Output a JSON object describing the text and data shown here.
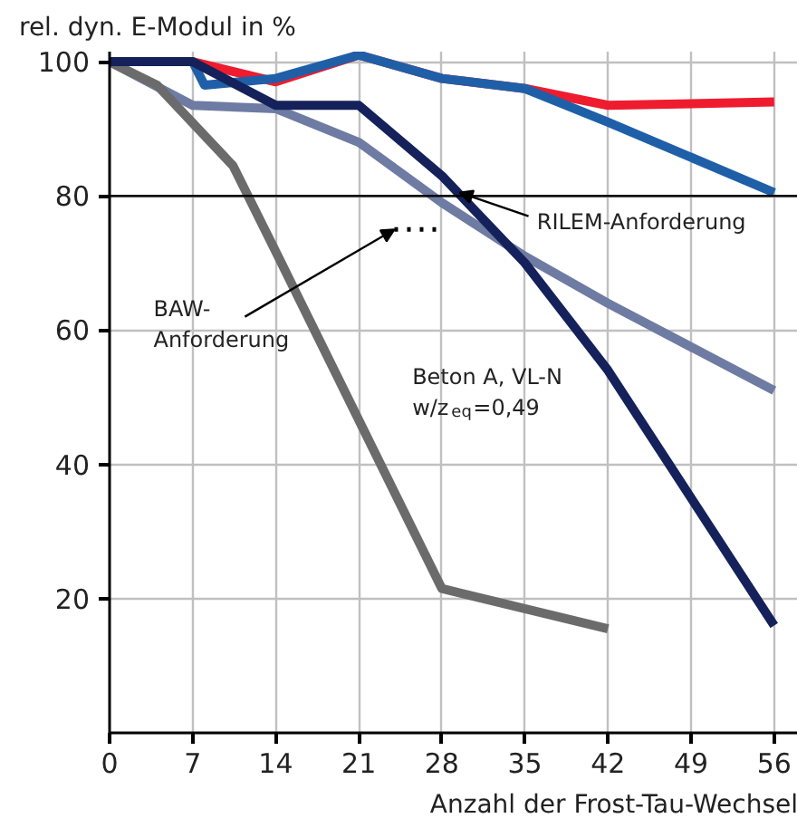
{
  "chart_data": {
    "type": "line",
    "ylabel": "rel. dyn. E-Modul in %",
    "xlabel": "Anzahl der Frost-Tau-Wechsel",
    "xlim": [
      0,
      58
    ],
    "ylim": [
      0,
      101.5
    ],
    "xticks": [
      0,
      7,
      14,
      21,
      28,
      35,
      42,
      49,
      56
    ],
    "yticks": [
      20,
      40,
      60,
      80,
      100
    ],
    "grid": true,
    "line_style": "solid",
    "series": [
      {
        "color": "#ee1c2e",
        "x": [
          0,
          7,
          14,
          21,
          28,
          35,
          42,
          56
        ],
        "values": [
          100,
          100,
          97,
          101,
          97.5,
          96,
          93.5,
          94
        ]
      },
      {
        "color": "#1f5fa8",
        "x": [
          0,
          7,
          8,
          14,
          21,
          28,
          35,
          42,
          56
        ],
        "values": [
          100,
          100,
          96.5,
          97.5,
          101,
          97.5,
          96,
          91,
          80.5
        ]
      },
      {
        "color": "#6e7ba3",
        "x": [
          0,
          7,
          14,
          21,
          28,
          35,
          42,
          56
        ],
        "values": [
          100,
          93.5,
          93,
          88,
          79,
          71,
          64,
          51
        ]
      },
      {
        "color": "#6b6b6b",
        "x": [
          0,
          4,
          10.4,
          14.2,
          28,
          42
        ],
        "values": [
          100,
          96.5,
          84.5,
          71,
          21.5,
          15.5
        ]
      },
      {
        "color": "#14215a",
        "x": [
          0,
          7,
          14,
          21,
          28,
          35,
          42,
          56
        ],
        "values": [
          100,
          100,
          93.5,
          93.5,
          83,
          70,
          54,
          16
        ]
      },
      {
        "color": "#000000",
        "line_style": "dotted",
        "x": [
          24,
          28
        ],
        "values": [
          75,
          75
        ]
      }
    ],
    "ref_lines": [
      {
        "axis": "y",
        "value": 80,
        "color": "#000000"
      }
    ],
    "annotations": [
      {
        "text": "RILEM-Anforderung",
        "x": 29.5,
        "y": 80.5
      },
      {
        "text": "BAW-\nAnforderung",
        "x": 24,
        "y": 75
      },
      "Beton A, VL-N\nw/z$_{eq}$=0,49"
    ]
  }
}
